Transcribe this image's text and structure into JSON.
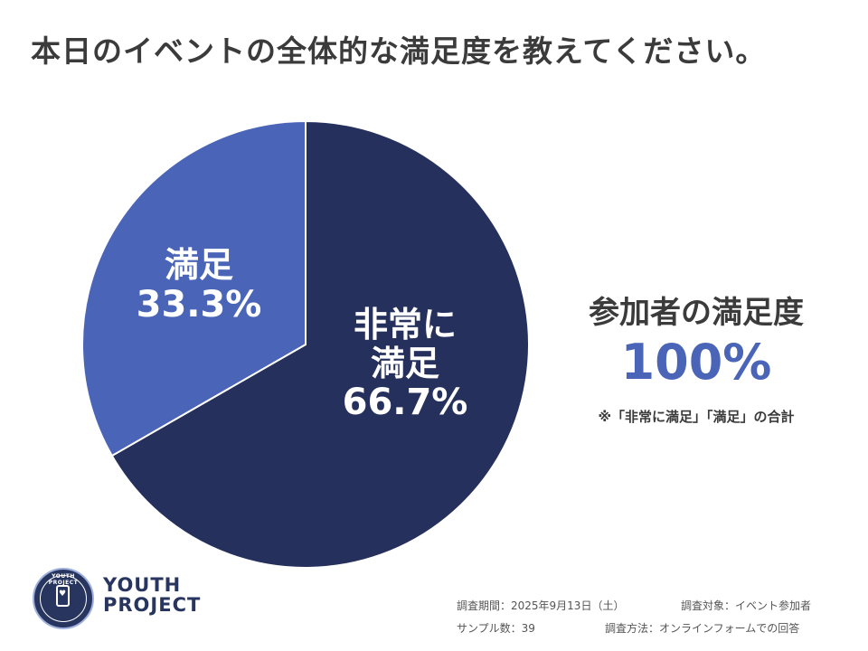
{
  "title": "本日のイベントの全体的な満足度を教えてください。",
  "chart_data": {
    "type": "pie",
    "slices": [
      {
        "label": "非常に満足",
        "value": 66.7,
        "value_label": "66.7%",
        "color": "#25305c"
      },
      {
        "label": "満足",
        "value": 33.3,
        "value_label": "33.3%",
        "color": "#4a64b8"
      }
    ],
    "start": "12 o'clock, clockwise"
  },
  "slice_labels": {
    "hijo_line1": "非常に",
    "hijo_line2": "満足",
    "hijo_pct": "66.7%",
    "manzoku_line1": "満足",
    "manzoku_pct": "33.3%"
  },
  "summary": {
    "title": "参加者の満足度",
    "value": "100%",
    "note": "※「非常に満足」「満足」の合計"
  },
  "logo": {
    "badge_text": "YOUTH PROJECT",
    "word_line1": "YOUTH",
    "word_line2": "PROJECT"
  },
  "footer": {
    "period": "調査期間：2025年9月13日（土）",
    "target": "調査対象：イベント参加者",
    "sample": "サンプル数：39",
    "method": "調査方法：オンラインフォームでの回答"
  }
}
